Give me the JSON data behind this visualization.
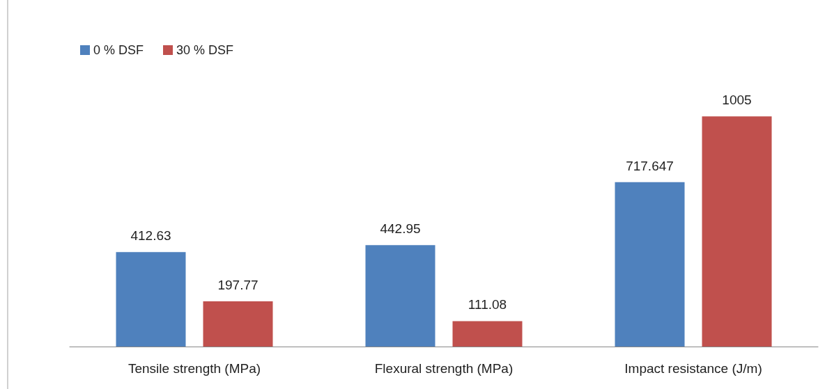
{
  "chart_data": {
    "type": "bar",
    "categories": [
      "Tensile strength (MPa)",
      "Flexural strength (MPa)",
      "Impact resistance (J/m)"
    ],
    "series": [
      {
        "name": "0 % DSF",
        "color": "#4f81bd",
        "values": [
          412.63,
          442.95,
          717.647
        ]
      },
      {
        "name": "30 % DSF",
        "color": "#c0504d",
        "values": [
          197.77,
          111.08,
          1005
        ]
      }
    ],
    "data_labels": true,
    "legend": "top left"
  }
}
